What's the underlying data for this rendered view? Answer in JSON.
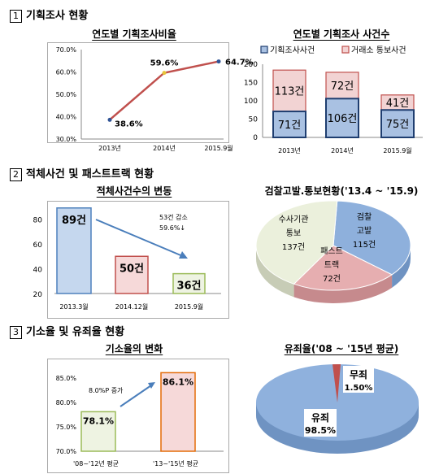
{
  "sections": {
    "s1": {
      "num": "1",
      "title": "기획조사 현황"
    },
    "s2": {
      "num": "2",
      "title": "적체사건 및 패스트트랙 현황"
    },
    "s3": {
      "num": "3",
      "title": "기소율 및 유죄율 현황"
    }
  },
  "titles": {
    "c1": "연도별 기획조사비율",
    "c2": "연도별 기획조사 사건수",
    "c3": "적체사건수의 변동",
    "c4": "검찰고발.통보현황('13.4 ~ '15.9)",
    "c5": "기소율의 변화",
    "c6": "유죄율('08 ~ '15년 평균)"
  },
  "colors": {
    "line": "#c0504d",
    "stack_bottom": "#a9c1e2",
    "stack_top": "#f2d3d3",
    "bar_blue": "#c5d7ee",
    "bar_pink": "#f6d9d9",
    "pie_blue": "#8eb0dc",
    "pie_pink": "#e6aeb0",
    "pie_green": "#ebf0dc",
    "pie_big": "#8fb1dd"
  },
  "chart_data": [
    {
      "type": "line",
      "title": "연도별 기획조사비율",
      "categories": [
        "2013년",
        "2014년",
        "2015.9월"
      ],
      "values": [
        38.6,
        59.6,
        64.7
      ],
      "labels": [
        "38.6%",
        "59.6%",
        "64.7%"
      ],
      "yticks": [
        "30.0%",
        "40.0%",
        "50.0%",
        "60.0%",
        "70.0%"
      ],
      "ylim": [
        30,
        70
      ],
      "grid": false
    },
    {
      "type": "bar",
      "stacked": true,
      "title": "연도별 기획조사 사건수",
      "categories": [
        "2013년",
        "2014년",
        "2015.9월"
      ],
      "series": [
        {
          "name": "기획조사사건",
          "values": [
            71,
            106,
            75
          ],
          "labels": [
            "71건",
            "106건",
            "75건"
          ]
        },
        {
          "name": "거래소 통보사건",
          "values": [
            113,
            72,
            41
          ],
          "labels": [
            "113건",
            "72건",
            "41건"
          ]
        }
      ],
      "yticks": [
        "0",
        "50",
        "100",
        "150",
        "200"
      ],
      "ylim": [
        0,
        200
      ],
      "legend": "top"
    },
    {
      "type": "bar",
      "title": "적체사건수의 변동",
      "categories": [
        "2013.3월",
        "2014.12월",
        "2015.9월"
      ],
      "values": [
        89,
        50,
        36
      ],
      "labels": [
        "89건",
        "50건",
        "36건"
      ],
      "yticks": [
        "20",
        "40",
        "60",
        "80"
      ],
      "ylim": [
        20,
        90
      ],
      "annotation": [
        "53건 감소",
        "59.6%↓"
      ]
    },
    {
      "type": "pie",
      "title": "검찰고발.통보현황('13.4 ~ '15.9)",
      "slices": [
        {
          "label": [
            "검찰",
            "고발",
            "115건"
          ],
          "value": 115
        },
        {
          "label": [
            "패스트",
            "트랙",
            "72건"
          ],
          "value": 72
        },
        {
          "label": [
            "수사기관",
            "통보",
            "137건"
          ],
          "value": 137
        }
      ]
    },
    {
      "type": "bar",
      "title": "기소율의 변화",
      "categories": [
        "'08~'12년 평균",
        "'13~'15년 평균"
      ],
      "values": [
        78.1,
        86.1
      ],
      "labels": [
        "78.1%",
        "86.1%"
      ],
      "yticks": [
        "70.0%",
        "75.0%",
        "80.0%",
        "85.0%"
      ],
      "ylim": [
        70,
        87.5
      ],
      "annotation": "8.0%P 증가"
    },
    {
      "type": "pie",
      "title": "유죄율('08 ~ '15년 평균)",
      "slices": [
        {
          "label": [
            "유죄",
            "98.5%"
          ],
          "value": 98.5
        },
        {
          "label": [
            "무죄",
            "1.50%"
          ],
          "value": 1.5
        }
      ]
    }
  ]
}
